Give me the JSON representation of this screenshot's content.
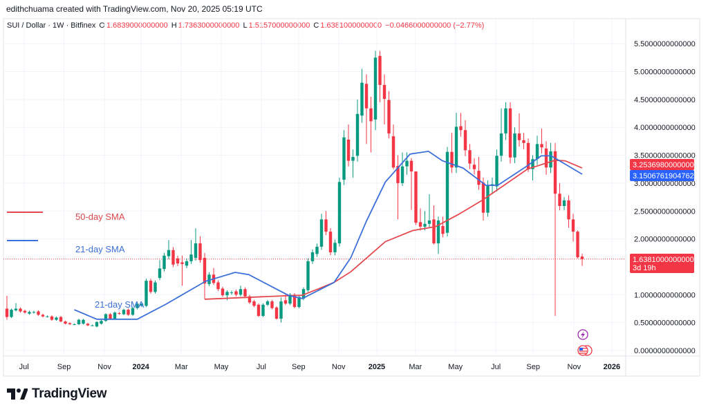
{
  "credit": "edithchuama created with TradingView.com, Nov 20, 2025 05:19 UTC",
  "symbol_line": {
    "symbol": "SUI / Dollar · 1W · Bitfinex",
    "o_label": "O",
    "o": "1.6839000000000",
    "h_label": "H",
    "h": "1.7363000000000",
    "l_label": "L",
    "l": "1.5157000000000",
    "c_label": "C",
    "c": "1.6381000000000",
    "change": "−0.0466000000000 (−2.77%)"
  },
  "annotations": {
    "sma50_label": "50-day SMA",
    "sma21_label": "21-day SMA",
    "sma21_label_2": "21-day SMA"
  },
  "price_labels": {
    "sma50_value": "3.2536980000000",
    "sma21_value": "3.1506761904762",
    "last_price": "1.6381000000000",
    "countdown": "3d 19h"
  },
  "brand": "TradingView",
  "colors": {
    "up": "#089981",
    "down": "#f23645",
    "sma50": "#e5484d",
    "sma21": "#3b6fd9",
    "grid": "#f0f3fa"
  },
  "chart_data": {
    "type": "candlestick",
    "title": "SUI / Dollar · 1W · Bitfinex",
    "ylim": [
      0,
      5.5
    ],
    "y_ticks": [
      "0.0000000000000",
      "0.5000000000000",
      "1.0000000000000",
      "2.0000000000000",
      "2.5000000000000",
      "3.0000000000000",
      "3.5000000000000",
      "4.0000000000000",
      "4.5000000000000",
      "5.0000000000000",
      "5.5000000000000"
    ],
    "y_tick_values": [
      0,
      0.5,
      1,
      2,
      2.5,
      3,
      3.5,
      4,
      4.5,
      5,
      5.5
    ],
    "x_ticks": [
      {
        "label": "Jul",
        "week": 3.8,
        "major": false
      },
      {
        "label": "Sep",
        "week": 12.7,
        "major": false
      },
      {
        "label": "Nov",
        "week": 21.7,
        "major": false
      },
      {
        "label": "2024",
        "week": 29.8,
        "major": true
      },
      {
        "label": "Mar",
        "week": 38.8,
        "major": false
      },
      {
        "label": "May",
        "week": 47.7,
        "major": false
      },
      {
        "label": "Jul",
        "week": 56.6,
        "major": false
      },
      {
        "label": "Sep",
        "week": 64.9,
        "major": false
      },
      {
        "label": "Nov",
        "week": 73.8,
        "major": false
      },
      {
        "label": "2025",
        "week": 82.3,
        "major": true
      },
      {
        "label": "Mar",
        "week": 90.9,
        "major": false
      },
      {
        "label": "May",
        "week": 99.8,
        "major": false
      },
      {
        "label": "Jul",
        "week": 108.8,
        "major": false
      },
      {
        "label": "Sep",
        "week": 117.1,
        "major": false
      },
      {
        "label": "Nov",
        "week": 126.2,
        "major": false
      },
      {
        "label": "2026",
        "week": 134.6,
        "major": true
      }
    ],
    "candles_oc_hl": [
      [
        0.75,
        0.6,
        0.98,
        0.55
      ],
      [
        0.6,
        0.73
      ],
      [
        0.72,
        0.75,
        0.85
      ],
      [
        0.75,
        0.7
      ],
      [
        0.71,
        0.68
      ],
      [
        0.66,
        0.69
      ],
      [
        0.68,
        0.69
      ],
      [
        0.7,
        0.64
      ],
      [
        0.64,
        0.61
      ],
      [
        0.61,
        0.61
      ],
      [
        0.61,
        0.55
      ],
      [
        0.55,
        0.59
      ],
      [
        0.6,
        0.52
      ],
      [
        0.52,
        0.48
      ],
      [
        0.49,
        0.47
      ],
      [
        0.47,
        0.47
      ],
      [
        0.47,
        0.55
      ],
      [
        0.48,
        0.55
      ],
      [
        0.48,
        0.45
      ],
      [
        0.45,
        0.45
      ],
      [
        0.43,
        0.51
      ],
      [
        0.48,
        0.53
      ],
      [
        0.53,
        0.65
      ],
      [
        0.65,
        0.57
      ],
      [
        0.57,
        0.68
      ],
      [
        0.67,
        0.66
      ],
      [
        0.65,
        0.73
      ],
      [
        0.73,
        0.64
      ],
      [
        0.64,
        0.76
      ],
      [
        0.76,
        0.84
      ],
      [
        0.8,
        0.84
      ],
      [
        0.8,
        1.25
      ],
      [
        1.25,
        1.05
      ],
      [
        1.05,
        1.22
      ],
      [
        1.3,
        1.47,
        1.62
      ],
      [
        1.46,
        1.7
      ],
      [
        1.69,
        1.8,
        1.98
      ],
      [
        1.8,
        1.54
      ],
      [
        1.65,
        1.56
      ],
      [
        1.58,
        1.55,
        1.7,
        1.16
      ],
      [
        1.52,
        1.6
      ],
      [
        1.6,
        1.72,
        1.98
      ],
      [
        1.66,
        1.92,
        2.19
      ],
      [
        1.92,
        1.62,
        2.05
      ],
      [
        1.66,
        1.2,
        1.75,
        0.92
      ],
      [
        1.19,
        1.36
      ],
      [
        1.36,
        1.21,
        1.48
      ],
      [
        1.22,
        1.1
      ],
      [
        1.11,
        0.99
      ],
      [
        0.99,
        1.05,
        1.08,
        0.9
      ],
      [
        1.03,
        1.04
      ],
      [
        1.06,
        1.0
      ],
      [
        1.0,
        1.1,
        1.16
      ],
      [
        1.1,
        0.97
      ],
      [
        0.97,
        0.86
      ],
      [
        0.88,
        0.8
      ],
      [
        0.82,
        0.62
      ],
      [
        0.62,
        0.82
      ],
      [
        0.82,
        0.88
      ],
      [
        0.88,
        0.76
      ],
      [
        0.77,
        0.57
      ],
      [
        0.57,
        0.88,
        0.95,
        0.5
      ],
      [
        0.9,
        0.84,
        1.0
      ],
      [
        0.84,
        1.0
      ],
      [
        1.0,
        0.78
      ],
      [
        0.78,
        0.96
      ],
      [
        0.93,
        1.1
      ],
      [
        1.08,
        1.6
      ],
      [
        1.6,
        1.76
      ],
      [
        1.73,
        1.86
      ],
      [
        1.86,
        2.35,
        2.45
      ],
      [
        2.35,
        2.13,
        2.5
      ],
      [
        2.13,
        1.76
      ],
      [
        1.76,
        1.93
      ],
      [
        1.92,
        3.02,
        3.1
      ],
      [
        3.06,
        3.82,
        3.95
      ],
      [
        3.78,
        3.4,
        4.05
      ],
      [
        3.4,
        3.47,
        3.6,
        3.1
      ],
      [
        3.49,
        4.24,
        4.5
      ],
      [
        4.21,
        4.8,
        5.05
      ],
      [
        4.78,
        4.34,
        4.95,
        3.7
      ],
      [
        4.34,
        4.11,
        4.55,
        3.55
      ],
      [
        4.14,
        5.25,
        5.37,
        3.95
      ],
      [
        5.28,
        4.76,
        5.37,
        4.45
      ],
      [
        4.76,
        4.51,
        4.95,
        4.05
      ],
      [
        4.49,
        3.89,
        4.65,
        3.8
      ],
      [
        3.84,
        3.28,
        4.05,
        3.25
      ],
      [
        3.31,
        3.0,
        3.5,
        2.35
      ],
      [
        3.0,
        3.3,
        3.55,
        2.95
      ],
      [
        3.3,
        3.4,
        3.55,
        3.15
      ],
      [
        3.4,
        3.21,
        3.45,
        2.52
      ],
      [
        3.21,
        2.29,
        3.21,
        2.25
      ],
      [
        2.3,
        2.22,
        2.55,
        2.15
      ],
      [
        2.22,
        2.27,
        2.5
      ],
      [
        2.27,
        2.33,
        2.8
      ],
      [
        2.35,
        1.92,
        2.6,
        1.9
      ],
      [
        1.92,
        2.33,
        2.4,
        1.73
      ],
      [
        2.23,
        2.09,
        2.4
      ],
      [
        2.11,
        3.56,
        3.65
      ],
      [
        3.56,
        3.28,
        3.9
      ],
      [
        3.28,
        4.01,
        4.26
      ],
      [
        4.02,
        3.95,
        4.26
      ],
      [
        3.95,
        3.59,
        4.13
      ],
      [
        3.59,
        3.35,
        3.7
      ],
      [
        3.33,
        3.25,
        3.45
      ],
      [
        3.22,
        2.97,
        3.47
      ],
      [
        3.01,
        2.47,
        3.1,
        2.33
      ],
      [
        2.47,
        2.96,
        3.05,
        2.4
      ],
      [
        2.96,
        2.98,
        3.1,
        2.8
      ],
      [
        2.94,
        3.49,
        3.6
      ],
      [
        3.49,
        3.89,
        4.34
      ],
      [
        3.89,
        4.34,
        4.45
      ],
      [
        4.34,
        3.46,
        4.45,
        3.35
      ],
      [
        3.46,
        3.89,
        4.0
      ],
      [
        3.89,
        3.77,
        4.25
      ],
      [
        3.77,
        3.72,
        3.9
      ],
      [
        3.72,
        3.25,
        3.8,
        3.2
      ],
      [
        3.25,
        3.43,
        3.5,
        3.05
      ],
      [
        3.43,
        3.7,
        3.85
      ],
      [
        3.7,
        3.64,
        3.98
      ],
      [
        3.62,
        3.28,
        3.75,
        3.15
      ],
      [
        3.28,
        3.57,
        3.72
      ],
      [
        3.57,
        2.81,
        3.72,
        0.62
      ],
      [
        2.81,
        2.59,
        3.0
      ],
      [
        2.59,
        2.69,
        2.75
      ],
      [
        2.69,
        2.35,
        2.78,
        2.2
      ],
      [
        2.35,
        2.13,
        2.45,
        1.95
      ],
      [
        2.13,
        1.67,
        2.15,
        1.65
      ],
      [
        1.6839,
        1.6381,
        1.7363,
        1.5157
      ]
    ],
    "sma21": {
      "name": "21-day SMA",
      "points": [
        [
          15,
          0.73
        ],
        [
          20,
          0.56
        ],
        [
          29,
          0.56
        ],
        [
          35.4,
          0.83
        ],
        [
          44.2,
          1.24
        ],
        [
          50.8,
          1.4
        ],
        [
          53.8,
          1.36
        ],
        [
          62.6,
          0.99
        ],
        [
          65.7,
          0.93
        ],
        [
          72.8,
          1.22
        ],
        [
          76.5,
          1.66
        ],
        [
          80,
          2.32
        ],
        [
          84.2,
          3.02
        ],
        [
          89.7,
          3.52
        ],
        [
          93.8,
          3.57
        ],
        [
          96.9,
          3.4
        ],
        [
          101.5,
          3.27
        ],
        [
          106.6,
          2.96
        ],
        [
          109.2,
          2.96
        ],
        [
          115.8,
          3.31
        ],
        [
          118.9,
          3.49
        ],
        [
          121.1,
          3.49
        ],
        [
          128,
          3.16
        ]
      ]
    },
    "sma50": {
      "name": "50-day SMA",
      "points": [
        [
          44,
          0.92
        ],
        [
          44.2,
          0.92
        ],
        [
          62,
          0.98
        ],
        [
          65.7,
          0.99
        ],
        [
          69.2,
          1.1
        ],
        [
          72.8,
          1.22
        ],
        [
          76.5,
          1.41
        ],
        [
          84.2,
          1.95
        ],
        [
          90.3,
          2.15
        ],
        [
          95.4,
          2.22
        ],
        [
          100.5,
          2.44
        ],
        [
          105.7,
          2.69
        ],
        [
          110.8,
          2.97
        ],
        [
          115.8,
          3.25
        ],
        [
          122,
          3.41
        ],
        [
          124.2,
          3.4
        ],
        [
          128,
          3.27
        ]
      ]
    },
    "last_price": 1.6381
  }
}
